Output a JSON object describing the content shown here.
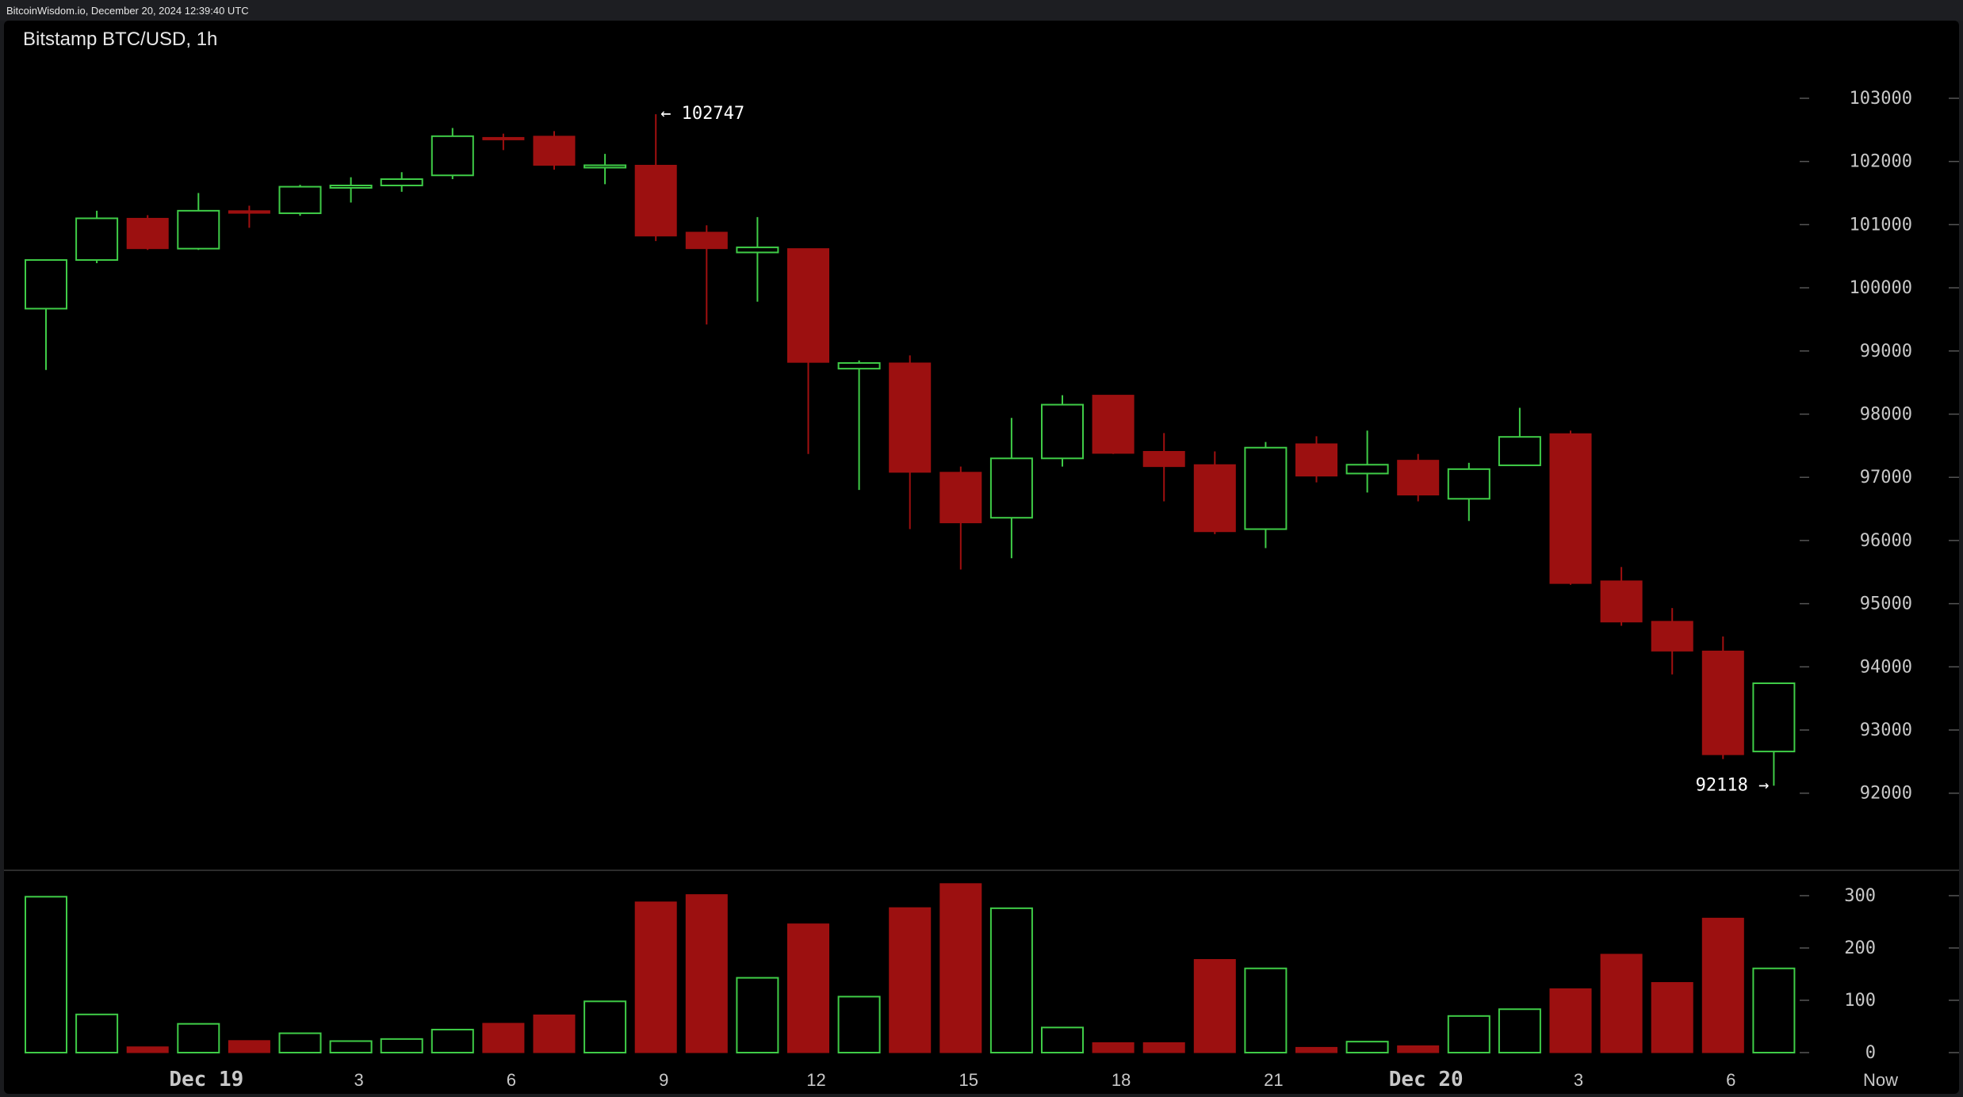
{
  "header": {
    "text": "BitcoinWisdom.io, December 20, 2024 12:39:40 UTC"
  },
  "colors": {
    "background": "#000000",
    "up": "#3fcc47",
    "down": "#a01010",
    "down_body": "#9c1010",
    "axis_text": "#c8c8c8",
    "annotation": "#ffffff",
    "divider": "#444444"
  },
  "chart_data": {
    "type": "candlestick",
    "title": "Bitstamp BTC/USD, 1h",
    "y_ticks": [
      "103000",
      "102000",
      "101000",
      "100000",
      "99000",
      "98000",
      "97000",
      "96000",
      "95000",
      "94000",
      "93000",
      "92000"
    ],
    "y_tick_values": [
      103000,
      102000,
      101000,
      100000,
      99000,
      98000,
      97000,
      96000,
      95000,
      94000,
      93000,
      92000
    ],
    "ylim": [
      91000,
      104000
    ],
    "volume_ticks": [
      "300",
      "200",
      "100",
      "0"
    ],
    "volume_tick_values": [
      300,
      200,
      100,
      0
    ],
    "volume_lim": [
      0,
      320
    ],
    "x_ticks": [
      {
        "label": "Dec 19",
        "index": 3,
        "bold": true
      },
      {
        "label": "3",
        "index": 6,
        "bold": false
      },
      {
        "label": "6",
        "index": 9,
        "bold": false
      },
      {
        "label": "9",
        "index": 12,
        "bold": false
      },
      {
        "label": "12",
        "index": 15,
        "bold": false
      },
      {
        "label": "15",
        "index": 18,
        "bold": false
      },
      {
        "label": "18",
        "index": 21,
        "bold": false
      },
      {
        "label": "21",
        "index": 24,
        "bold": false
      },
      {
        "label": "Dec 20",
        "index": 27,
        "bold": true
      },
      {
        "label": "3",
        "index": 30,
        "bold": false
      },
      {
        "label": "6",
        "index": 33,
        "bold": false
      },
      {
        "label": "Now",
        "index": 36,
        "bold": false
      }
    ],
    "annotations": {
      "high_label": "← 102747",
      "high_value": 102747,
      "high_index": 12,
      "low_label": "92118 →",
      "low_value": 92118,
      "low_index": 34
    },
    "candles": [
      {
        "o": 99670,
        "h": 100440,
        "l": 98700,
        "c": 100440,
        "v": 298
      },
      {
        "o": 100440,
        "h": 101220,
        "l": 100390,
        "c": 101100,
        "v": 73
      },
      {
        "o": 101100,
        "h": 101150,
        "l": 100600,
        "c": 100620,
        "v": 11
      },
      {
        "o": 100620,
        "h": 101500,
        "l": 100600,
        "c": 101220,
        "v": 55
      },
      {
        "o": 101220,
        "h": 101300,
        "l": 100950,
        "c": 101180,
        "v": 23
      },
      {
        "o": 101180,
        "h": 101630,
        "l": 101140,
        "c": 101600,
        "v": 37
      },
      {
        "o": 101600,
        "h": 101750,
        "l": 101350,
        "c": 101620,
        "v": 22
      },
      {
        "o": 101620,
        "h": 101830,
        "l": 101520,
        "c": 101720,
        "v": 26
      },
      {
        "o": 101780,
        "h": 102530,
        "l": 101720,
        "c": 102400,
        "v": 44
      },
      {
        "o": 102380,
        "h": 102440,
        "l": 102180,
        "c": 102360,
        "v": 56
      },
      {
        "o": 102400,
        "h": 102480,
        "l": 101870,
        "c": 101940,
        "v": 72
      },
      {
        "o": 101940,
        "h": 102120,
        "l": 101640,
        "c": 101940,
        "v": 98
      },
      {
        "o": 101940,
        "h": 102747,
        "l": 100740,
        "c": 100820,
        "v": 288
      },
      {
        "o": 100880,
        "h": 100990,
        "l": 99420,
        "c": 100620,
        "v": 302
      },
      {
        "o": 100560,
        "h": 101120,
        "l": 99780,
        "c": 100640,
        "v": 143
      },
      {
        "o": 100620,
        "h": 100620,
        "l": 97370,
        "c": 98820,
        "v": 246
      },
      {
        "o": 98720,
        "h": 98850,
        "l": 96800,
        "c": 98810,
        "v": 107
      },
      {
        "o": 98810,
        "h": 98930,
        "l": 96180,
        "c": 97080,
        "v": 277
      },
      {
        "o": 97080,
        "h": 97170,
        "l": 95540,
        "c": 96280,
        "v": 323
      },
      {
        "o": 96360,
        "h": 97940,
        "l": 95720,
        "c": 97300,
        "v": 276
      },
      {
        "o": 97300,
        "h": 98300,
        "l": 97170,
        "c": 98150,
        "v": 48
      },
      {
        "o": 98300,
        "h": 98300,
        "l": 97370,
        "c": 97380,
        "v": 19
      },
      {
        "o": 97410,
        "h": 97700,
        "l": 96620,
        "c": 97170,
        "v": 19
      },
      {
        "o": 97200,
        "h": 97410,
        "l": 96100,
        "c": 96140,
        "v": 178
      },
      {
        "o": 96180,
        "h": 97560,
        "l": 95880,
        "c": 97470,
        "v": 161
      },
      {
        "o": 97530,
        "h": 97650,
        "l": 96920,
        "c": 97020,
        "v": 10
      },
      {
        "o": 97060,
        "h": 97740,
        "l": 96760,
        "c": 97200,
        "v": 21
      },
      {
        "o": 97270,
        "h": 97370,
        "l": 96620,
        "c": 96720,
        "v": 13
      },
      {
        "o": 96660,
        "h": 97230,
        "l": 96310,
        "c": 97130,
        "v": 70
      },
      {
        "o": 97190,
        "h": 98100,
        "l": 97180,
        "c": 97640,
        "v": 83
      },
      {
        "o": 97690,
        "h": 97740,
        "l": 95300,
        "c": 95320,
        "v": 122
      },
      {
        "o": 95360,
        "h": 95580,
        "l": 94650,
        "c": 94710,
        "v": 188
      },
      {
        "o": 94720,
        "h": 94930,
        "l": 93880,
        "c": 94250,
        "v": 134
      },
      {
        "o": 94250,
        "h": 94480,
        "l": 92540,
        "c": 92610,
        "v": 257
      },
      {
        "o": 92660,
        "h": 93750,
        "l": 92118,
        "c": 93740,
        "v": 161
      }
    ]
  }
}
